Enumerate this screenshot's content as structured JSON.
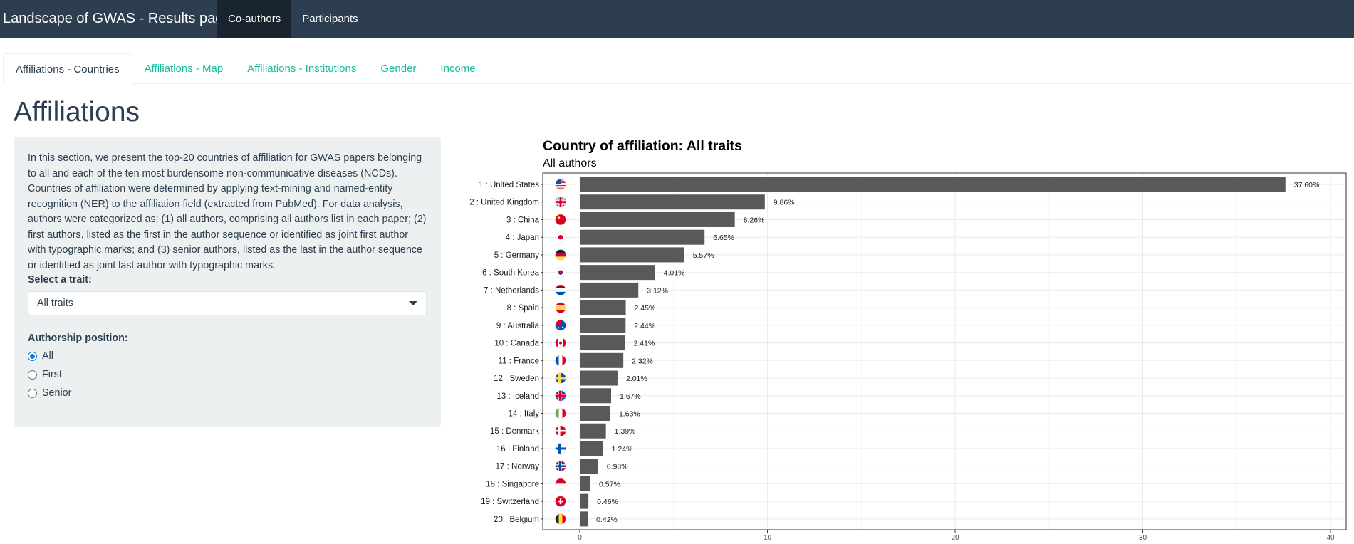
{
  "app": {
    "title": "Landscape of GWAS - Results page"
  },
  "nav": {
    "items": [
      {
        "label": "Co-authors",
        "active": true
      },
      {
        "label": "Participants",
        "active": false
      }
    ]
  },
  "tabs": [
    {
      "label": "Affiliations - Countries",
      "active": true
    },
    {
      "label": "Affiliations - Map",
      "active": false
    },
    {
      "label": "Affiliations - Institutions",
      "active": false
    },
    {
      "label": "Gender",
      "active": false
    },
    {
      "label": "Income",
      "active": false
    }
  ],
  "page": {
    "title": "Affiliations"
  },
  "sidebar": {
    "intro": "In this section, we present the top-20 countries of affiliation for GWAS papers belonging to all and each of the ten most burdensome non-communicative diseases (NCDs). Countries of affiliation were determined by applying text-mining and named-entity recognition (NER) to the affiliation field (extracted from PubMed). For data analysis, authors were categorized as: (1) all authors, comprising all authors list in each paper; (2) first authors, listed as the first in the author sequence or identified as joint first author with typographic marks; and (3) senior authors, listed as the last in the author sequence or identified as joint last author with typographic marks.",
    "trait_label": "Select a trait:",
    "trait_value": "All traits",
    "authorship_label": "Authorship position:",
    "authorship_options": [
      {
        "label": "All",
        "checked": true
      },
      {
        "label": "First",
        "checked": false
      },
      {
        "label": "Senior",
        "checked": false
      }
    ]
  },
  "colors": {
    "navbar": "#2c3e50",
    "accent": "#18bc9c",
    "well": "#ecf0f1",
    "bar": "#595959"
  },
  "chart_data": {
    "type": "bar",
    "orientation": "horizontal",
    "title": "Country of affiliation: All traits",
    "subtitle": "All authors",
    "xlabel": "",
    "ylabel": "",
    "xlim": [
      0,
      40
    ],
    "xticks": [
      0,
      10,
      20,
      30,
      40
    ],
    "grid": true,
    "categories": [
      "1 : United States",
      "2 : United Kingdom",
      "3 : China",
      "4 : Japan",
      "5 : Germany",
      "6 : South Korea",
      "7 : Netherlands",
      "8 : Spain",
      "9 : Australia",
      "10 : Canada",
      "11 : France",
      "12 : Sweden",
      "13 : Iceland",
      "14 : Italy",
      "15 : Denmark",
      "16 : Finland",
      "17 : Norway",
      "18 : Singapore",
      "19 : Switzerland",
      "20 : Belgium"
    ],
    "values": [
      37.6,
      9.86,
      8.26,
      6.65,
      5.57,
      4.01,
      3.12,
      2.45,
      2.44,
      2.41,
      2.32,
      2.01,
      1.67,
      1.63,
      1.39,
      1.24,
      0.98,
      0.57,
      0.46,
      0.42
    ],
    "value_labels": [
      "37.60%",
      "9.86%",
      "8.26%",
      "6.65%",
      "5.57%",
      "4.01%",
      "3.12%",
      "2.45%",
      "2.44%",
      "2.41%",
      "2.32%",
      "2.01%",
      "1.67%",
      "1.63%",
      "1.39%",
      "1.24%",
      "0.98%",
      "0.57%",
      "0.46%",
      "0.42%"
    ],
    "flags": [
      "us",
      "gb",
      "cn",
      "jp",
      "de",
      "kr",
      "nl",
      "es",
      "au",
      "ca",
      "fr",
      "se",
      "is",
      "it",
      "dk",
      "fi",
      "no",
      "sg",
      "ch",
      "be"
    ]
  }
}
